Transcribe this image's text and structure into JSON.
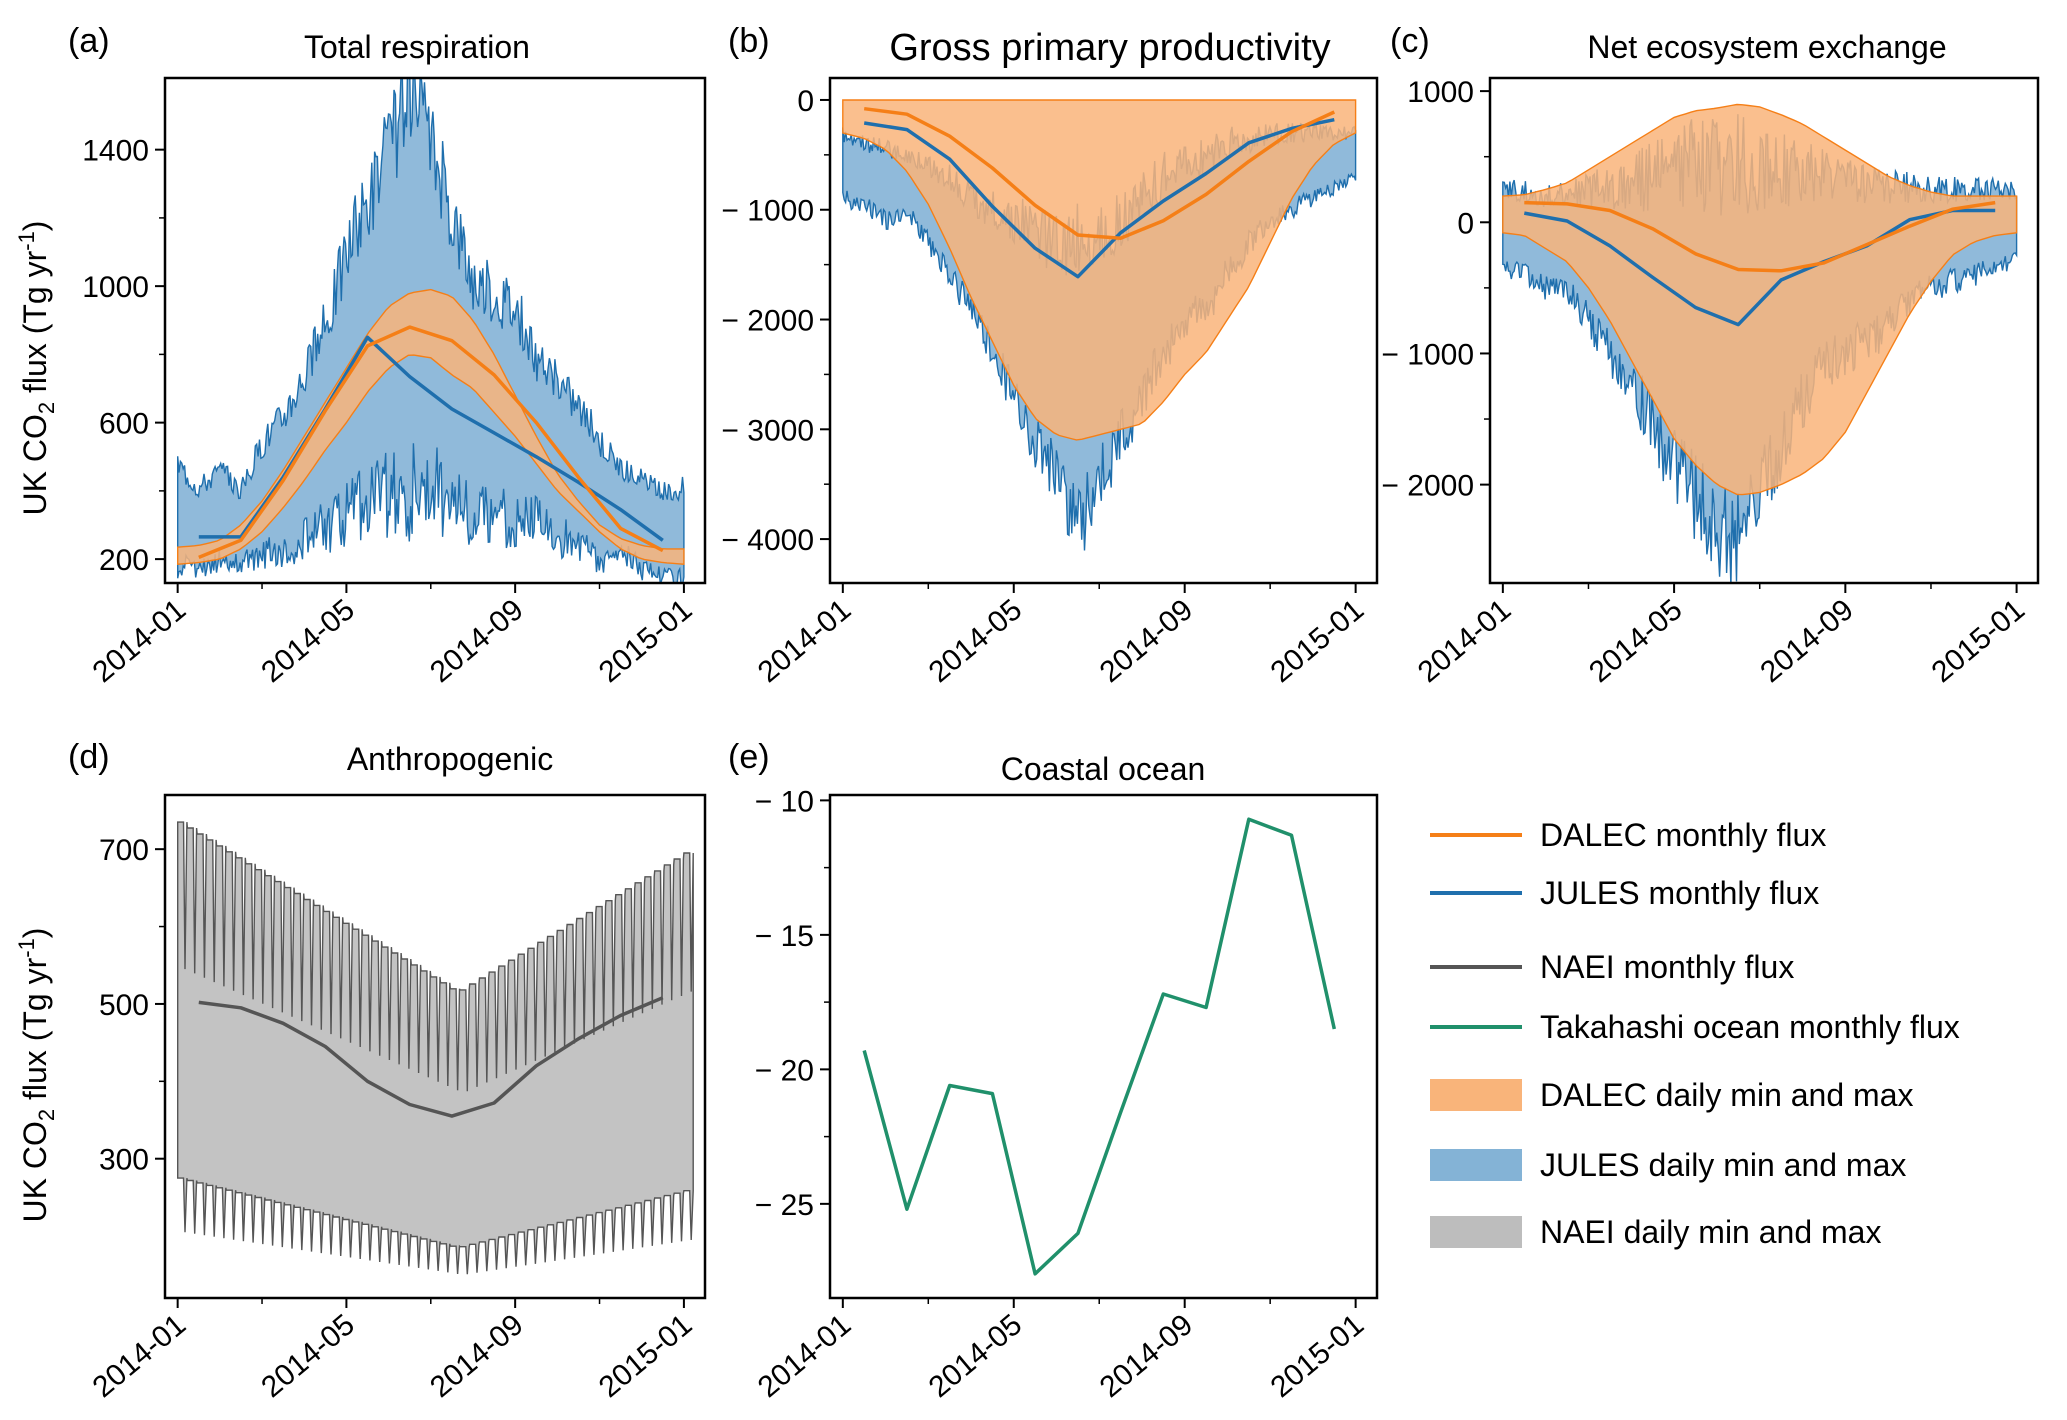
{
  "figure": {
    "ylabel_text": "UK CO",
    "ylabel_sub": "2",
    "ylabel_unit_pre": " flux (Tg yr",
    "ylabel_sup": "-1",
    "ylabel_unit_post": ")",
    "x_ticks": [
      "2014-01",
      "2014-05",
      "2014-09",
      "2015-01"
    ]
  },
  "colors": {
    "dalec": "#f57f17",
    "dalec_fill": "#f9b47a",
    "jules": "#1f6fad",
    "jules_fill": "#84b3d6",
    "naei": "#555555",
    "naei_fill": "#bdbdbd",
    "ocean": "#20906b"
  },
  "legend": [
    {
      "type": "line",
      "color": "dalec",
      "label": "DALEC monthly flux"
    },
    {
      "type": "line",
      "color": "jules",
      "label": "JULES monthly flux"
    },
    {
      "type": "line",
      "color": "naei",
      "label": "NAEI monthly flux"
    },
    {
      "type": "line",
      "color": "ocean",
      "label": "Takahashi ocean monthly flux"
    },
    {
      "type": "patch",
      "color": "dalec_fill",
      "label": "DALEC daily min and max"
    },
    {
      "type": "patch",
      "color": "jules_fill",
      "label": "JULES daily min and max"
    },
    {
      "type": "patch",
      "color": "naei_fill",
      "label": "NAEI daily min and max"
    }
  ],
  "chart_data": [
    {
      "panel": "(a)",
      "title": "Total respiration",
      "type": "line",
      "x_unit": "month (0 = 2014-01, 12 = 2015-01)",
      "xlim": [
        -0.3,
        12.5
      ],
      "ylim": [
        130,
        1610
      ],
      "yticks": [
        200,
        600,
        1000,
        1400
      ],
      "ylabel": "UK CO2 flux (Tg yr-1)",
      "series": [
        {
          "name": "JULES monthly flux",
          "x": [
            0.5,
            1.5,
            2.5,
            3.5,
            4.5,
            5.5,
            6.5,
            7.5,
            8.5,
            9.5,
            10.5,
            11.5
          ],
          "values": [
            265,
            265,
            440,
            640,
            850,
            735,
            640,
            570,
            500,
            425,
            345,
            255
          ]
        },
        {
          "name": "DALEC monthly flux",
          "x": [
            0.5,
            1.5,
            2.5,
            3.5,
            4.5,
            5.5,
            6.5,
            7.5,
            8.5,
            9.5,
            10.5,
            11.5
          ],
          "values": [
            205,
            255,
            430,
            635,
            825,
            880,
            840,
            740,
            600,
            440,
            290,
            225
          ]
        }
      ],
      "bands": [
        {
          "name": "JULES daily min and max",
          "x": [
            0,
            0.5,
            1,
            1.5,
            2,
            2.5,
            3,
            3.5,
            4,
            4.5,
            5,
            5.5,
            6,
            6.5,
            7,
            7.5,
            8,
            8.5,
            9,
            9.5,
            10,
            10.5,
            11,
            11.5,
            12
          ],
          "lower": [
            185,
            170,
            200,
            185,
            215,
            230,
            260,
            290,
            320,
            370,
            400,
            380,
            410,
            370,
            320,
            340,
            300,
            330,
            260,
            250,
            200,
            230,
            170,
            150,
            140
          ],
          "upper": [
            480,
            410,
            460,
            400,
            540,
            620,
            740,
            880,
            1100,
            1250,
            1400,
            1560,
            1420,
            1220,
            1020,
            980,
            940,
            780,
            720,
            650,
            550,
            470,
            430,
            390,
            410
          ]
        },
        {
          "name": "DALEC daily min and max",
          "x": [
            0,
            0.5,
            1,
            1.5,
            2,
            2.5,
            3,
            3.5,
            4,
            4.5,
            5,
            5.5,
            6,
            6.5,
            7,
            7.5,
            8,
            8.5,
            9,
            9.5,
            10,
            10.5,
            11,
            11.5,
            12
          ],
          "lower": [
            185,
            190,
            200,
            230,
            280,
            350,
            430,
            520,
            600,
            690,
            760,
            800,
            790,
            740,
            700,
            630,
            560,
            480,
            400,
            340,
            280,
            230,
            200,
            190,
            185
          ],
          "upper": [
            235,
            240,
            255,
            300,
            370,
            460,
            560,
            660,
            760,
            860,
            940,
            980,
            990,
            970,
            900,
            800,
            680,
            560,
            450,
            370,
            300,
            260,
            240,
            230,
            230
          ]
        }
      ]
    },
    {
      "panel": "(b)",
      "title": "Gross primary productivity",
      "type": "line",
      "x_unit": "month (0 = 2014-01, 12 = 2015-01)",
      "xlim": [
        -0.3,
        12.5
      ],
      "ylim": [
        -4400,
        200
      ],
      "yticks": [
        0,
        -1000,
        -2000,
        -3000,
        -4000
      ],
      "series": [
        {
          "name": "JULES monthly flux",
          "x": [
            0.5,
            1.5,
            2.5,
            3.5,
            4.5,
            5.5,
            6.5,
            7.5,
            8.5,
            9.5,
            10.5,
            11.5
          ],
          "values": [
            -210,
            -270,
            -540,
            -970,
            -1350,
            -1610,
            -1210,
            -920,
            -670,
            -390,
            -260,
            -180
          ]
        },
        {
          "name": "DALEC monthly flux",
          "x": [
            0.5,
            1.5,
            2.5,
            3.5,
            4.5,
            5.5,
            6.5,
            7.5,
            8.5,
            9.5,
            10.5,
            11.5
          ],
          "values": [
            -80,
            -130,
            -330,
            -620,
            -960,
            -1230,
            -1260,
            -1100,
            -860,
            -560,
            -290,
            -110
          ]
        }
      ],
      "bands": [
        {
          "name": "JULES daily min and max",
          "x": [
            0,
            0.5,
            1,
            1.5,
            2,
            2.5,
            3,
            3.5,
            4,
            4.5,
            5,
            5.5,
            6,
            6.5,
            7,
            7.5,
            8,
            8.5,
            9,
            9.5,
            10,
            10.5,
            11,
            11.5,
            12
          ],
          "lower": [
            -900,
            -950,
            -1100,
            -1000,
            -1300,
            -1600,
            -1900,
            -2300,
            -2700,
            -3100,
            -3400,
            -3900,
            -3500,
            -3100,
            -2700,
            -2300,
            -2000,
            -1900,
            -1600,
            -1300,
            -1100,
            -1000,
            -900,
            -800,
            -700
          ],
          "upper": [
            -300,
            -400,
            -450,
            -500,
            -600,
            -700,
            -900,
            -1000,
            -1100,
            -1200,
            -1300,
            -1300,
            -1200,
            -1100,
            -900,
            -700,
            -600,
            -500,
            -400,
            -400,
            -300,
            -300,
            -300,
            -300,
            -300
          ]
        },
        {
          "name": "DALEC daily min and max",
          "x": [
            0,
            0.5,
            1,
            1.5,
            2,
            2.5,
            3,
            3.5,
            4,
            4.5,
            5,
            5.5,
            6,
            6.5,
            7,
            7.5,
            8,
            8.5,
            9,
            9.5,
            10,
            10.5,
            11,
            11.5,
            12
          ],
          "lower": [
            -300,
            -350,
            -450,
            -650,
            -950,
            -1350,
            -1800,
            -2200,
            -2600,
            -2900,
            -3050,
            -3100,
            -3050,
            -3000,
            -2950,
            -2750,
            -2500,
            -2300,
            -2000,
            -1700,
            -1300,
            -900,
            -600,
            -400,
            -300
          ],
          "upper": [
            0,
            0,
            0,
            0,
            0,
            0,
            0,
            0,
            0,
            0,
            0,
            0,
            0,
            0,
            0,
            0,
            0,
            0,
            0,
            0,
            0,
            0,
            0,
            0,
            0
          ]
        }
      ]
    },
    {
      "panel": "(c)",
      "title": "Net ecosystem exchange",
      "type": "line",
      "x_unit": "month (0 = 2014-01, 12 = 2015-01)",
      "xlim": [
        -0.3,
        12.5
      ],
      "ylim": [
        -2750,
        1100
      ],
      "yticks": [
        1000,
        0,
        -1000,
        -2000
      ],
      "series": [
        {
          "name": "JULES monthly flux",
          "x": [
            0.5,
            1.5,
            2.5,
            3.5,
            4.5,
            5.5,
            6.5,
            7.5,
            8.5,
            9.5,
            10.5,
            11.5
          ],
          "values": [
            70,
            10,
            -180,
            -420,
            -650,
            -780,
            -440,
            -300,
            -180,
            20,
            90,
            90
          ]
        },
        {
          "name": "DALEC monthly flux",
          "x": [
            0.5,
            1.5,
            2.5,
            3.5,
            4.5,
            5.5,
            6.5,
            7.5,
            8.5,
            9.5,
            10.5,
            11.5
          ],
          "values": [
            150,
            140,
            90,
            -50,
            -240,
            -360,
            -370,
            -310,
            -170,
            -30,
            100,
            150
          ]
        }
      ],
      "bands": [
        {
          "name": "JULES daily min and max",
          "x": [
            0,
            0.5,
            1,
            1.5,
            2,
            2.5,
            3,
            3.5,
            4,
            4.5,
            5,
            5.5,
            6,
            6.5,
            7,
            7.5,
            8,
            8.5,
            9,
            9.5,
            10,
            10.5,
            11,
            11.5,
            12
          ],
          "lower": [
            -350,
            -400,
            -500,
            -500,
            -750,
            -1000,
            -1250,
            -1550,
            -1850,
            -2100,
            -2300,
            -2450,
            -2100,
            -1700,
            -1350,
            -1100,
            -1000,
            -900,
            -800,
            -600,
            -500,
            -450,
            -400,
            -350,
            -300
          ],
          "upper": [
            250,
            230,
            200,
            220,
            250,
            280,
            300,
            350,
            400,
            450,
            420,
            430,
            450,
            400,
            380,
            370,
            330,
            300,
            280,
            260,
            250,
            250,
            250,
            260,
            250
          ]
        },
        {
          "name": "DALEC daily min and max",
          "x": [
            0,
            0.5,
            1,
            1.5,
            2,
            2.5,
            3,
            3.5,
            4,
            4.5,
            5,
            5.5,
            6,
            6.5,
            7,
            7.5,
            8,
            8.5,
            9,
            9.5,
            10,
            10.5,
            11,
            11.5,
            12
          ],
          "lower": [
            -80,
            -100,
            -200,
            -300,
            -500,
            -750,
            -1050,
            -1350,
            -1650,
            -1850,
            -2000,
            -2080,
            -2060,
            -2000,
            -1920,
            -1800,
            -1600,
            -1300,
            -1000,
            -700,
            -450,
            -250,
            -150,
            -100,
            -80
          ],
          "upper": [
            200,
            210,
            250,
            300,
            400,
            500,
            600,
            700,
            800,
            850,
            870,
            900,
            880,
            820,
            750,
            650,
            550,
            450,
            350,
            280,
            230,
            200,
            200,
            200,
            200
          ]
        }
      ]
    },
    {
      "panel": "(d)",
      "title": "Anthropogenic",
      "type": "line",
      "x_unit": "month (0 = 2014-01, 12 = 2015-01)",
      "xlim": [
        -0.3,
        12.5
      ],
      "ylim": [
        120,
        770
      ],
      "yticks": [
        300,
        500,
        700
      ],
      "ylabel": "UK CO2 flux (Tg yr-1)",
      "series": [
        {
          "name": "NAEI monthly flux",
          "x": [
            0.5,
            1.5,
            2.5,
            3.5,
            4.5,
            5.5,
            6.5,
            7.5,
            8.5,
            9.5,
            10.5,
            11.5
          ],
          "values": [
            502,
            495,
            475,
            445,
            400,
            370,
            355,
            372,
            420,
            455,
            485,
            508
          ]
        }
      ],
      "bands": [
        {
          "name": "NAEI daily min and max",
          "weekly_cycles": 52,
          "weekday_upper_start": 735,
          "weekday_upper_mid": 515,
          "weekday_lower_start": 275,
          "weekday_lower_mid": 185,
          "weekend_upper_start": 545,
          "weekend_upper_mid": 385,
          "weekend_lower_start": 205,
          "weekend_lower_mid": 150
        }
      ]
    },
    {
      "panel": "(e)",
      "title": "Coastal ocean",
      "type": "line",
      "x_unit": "month (0 = 2014-01, 12 = 2015-01)",
      "xlim": [
        -0.3,
        12.5
      ],
      "ylim": [
        -28.5,
        -9.8
      ],
      "yticks": [
        -10,
        -15,
        -20,
        -25
      ],
      "series": [
        {
          "name": "Takahashi ocean monthly flux",
          "x": [
            0.5,
            1.5,
            2.5,
            3.5,
            4.5,
            5.5,
            6.5,
            7.5,
            8.5,
            9.5,
            10.5,
            11.5
          ],
          "values": [
            -19.3,
            -25.2,
            -20.6,
            -20.9,
            -27.6,
            -26.1,
            -21.6,
            -17.2,
            -17.7,
            -10.7,
            -11.3,
            -18.5
          ]
        }
      ]
    }
  ]
}
